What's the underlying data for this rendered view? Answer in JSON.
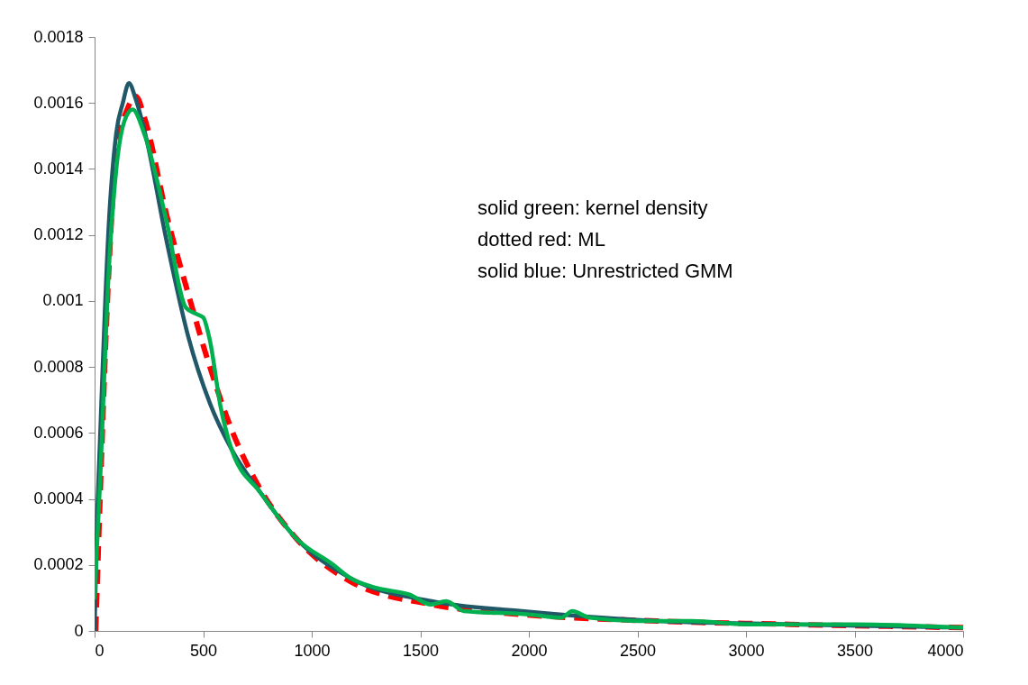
{
  "chart_data": {
    "type": "line",
    "xlim": [
      0,
      4000
    ],
    "xticks": [
      0,
      500,
      1000,
      1500,
      2000,
      2500,
      3000,
      3500,
      4000
    ],
    "ylim": [
      0,
      0.0018
    ],
    "yticks": [
      0,
      0.0002,
      0.0004,
      0.0006,
      0.0008,
      0.001,
      0.0012,
      0.0014,
      0.0016,
      0.0018
    ],
    "grid": false,
    "marker": "none",
    "annotations": [
      "solid green:  kernel density",
      "dotted red:  ML",
      "solid blue:  Unrestricted GMM"
    ],
    "series": [
      {
        "color": "#ff0000",
        "line_style": "dashed",
        "x": [
          5,
          25,
          66,
          100,
          150,
          190,
          232,
          332,
          432,
          531,
          631,
          763,
          929,
          1178,
          1552,
          1967,
          2589,
          3200,
          4000
        ],
        "values": [
          0,
          0.0004,
          0.0011,
          0.00145,
          0.00158,
          0.00162,
          0.00155,
          0.00126,
          0.00102,
          0.0008,
          0.00061,
          0.00043,
          0.00028,
          0.00015,
          8e-05,
          5e-05,
          3e-05,
          2e-05,
          1e-05
        ]
      },
      {
        "color": "#215868",
        "line_style": "solid",
        "x": [
          0,
          10,
          25,
          66,
          100,
          130,
          158,
          190,
          232,
          332,
          432,
          531,
          631,
          763,
          929,
          1178,
          1552,
          1967,
          2589,
          3200,
          4000
        ],
        "values": [
          0,
          0.0003,
          0.00058,
          0.00124,
          0.00151,
          0.0016,
          0.00166,
          0.00161,
          0.00151,
          0.00118,
          0.00089,
          0.00069,
          0.00055,
          0.00042,
          0.00028,
          0.00016,
          9e-05,
          6e-05,
          3e-05,
          2e-05,
          1e-05
        ]
      },
      {
        "color": "#00b050",
        "line_style": "solid",
        "x": [
          0,
          25,
          66,
          100,
          140,
          175,
          232,
          332,
          420,
          470,
          500,
          531,
          580,
          631,
          763,
          929,
          1100,
          1178,
          1300,
          1450,
          1550,
          1620,
          1700,
          2000,
          2150,
          2200,
          2280,
          2500,
          2750,
          3000,
          3300,
          3500,
          4000
        ],
        "values": [
          0.0001,
          0.00045,
          0.0011,
          0.0014,
          0.00155,
          0.00158,
          0.0015,
          0.00124,
          0.00098,
          0.00096,
          0.00095,
          0.00088,
          0.00068,
          0.00055,
          0.00042,
          0.00028,
          0.0002,
          0.00016,
          0.00013,
          0.00011,
          8e-05,
          9e-05,
          6e-05,
          5e-05,
          4e-05,
          6e-05,
          4e-05,
          3e-05,
          3e-05,
          2e-05,
          2e-05,
          2e-05,
          1e-05
        ]
      }
    ]
  }
}
